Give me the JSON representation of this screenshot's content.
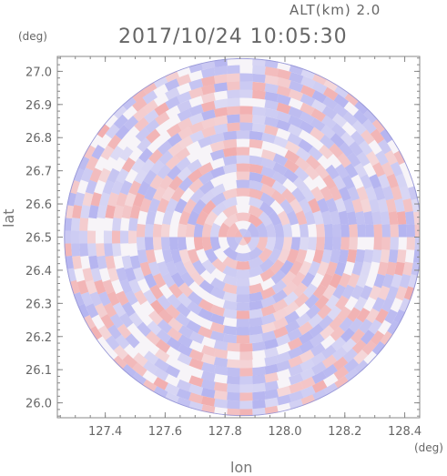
{
  "header": {
    "altitude": "ALT(km)  2.0",
    "timestamp": "2017/10/24 10:05:30"
  },
  "chart_data": {
    "type": "heatmap",
    "xlabel": "lon",
    "ylabel": "lat",
    "x_unit": "(deg)",
    "y_unit": "(deg)",
    "xlim": [
      127.24,
      128.45
    ],
    "ylim": [
      25.955,
      27.045
    ],
    "x_ticks": [
      "127.4",
      "127.6",
      "127.8",
      "128.0",
      "128.2",
      "128.4"
    ],
    "y_ticks": [
      "26.0",
      "26.1",
      "26.2",
      "26.3",
      "26.4",
      "26.5",
      "26.6",
      "26.7",
      "26.8",
      "26.9",
      "27.0"
    ],
    "center": {
      "lon": 127.86,
      "lat": 26.5
    },
    "radius_lat_deg": 0.54,
    "colors": {
      "positive": "#f0a0a0",
      "negative": "#a8a8ee",
      "frame": "#888888"
    }
  }
}
